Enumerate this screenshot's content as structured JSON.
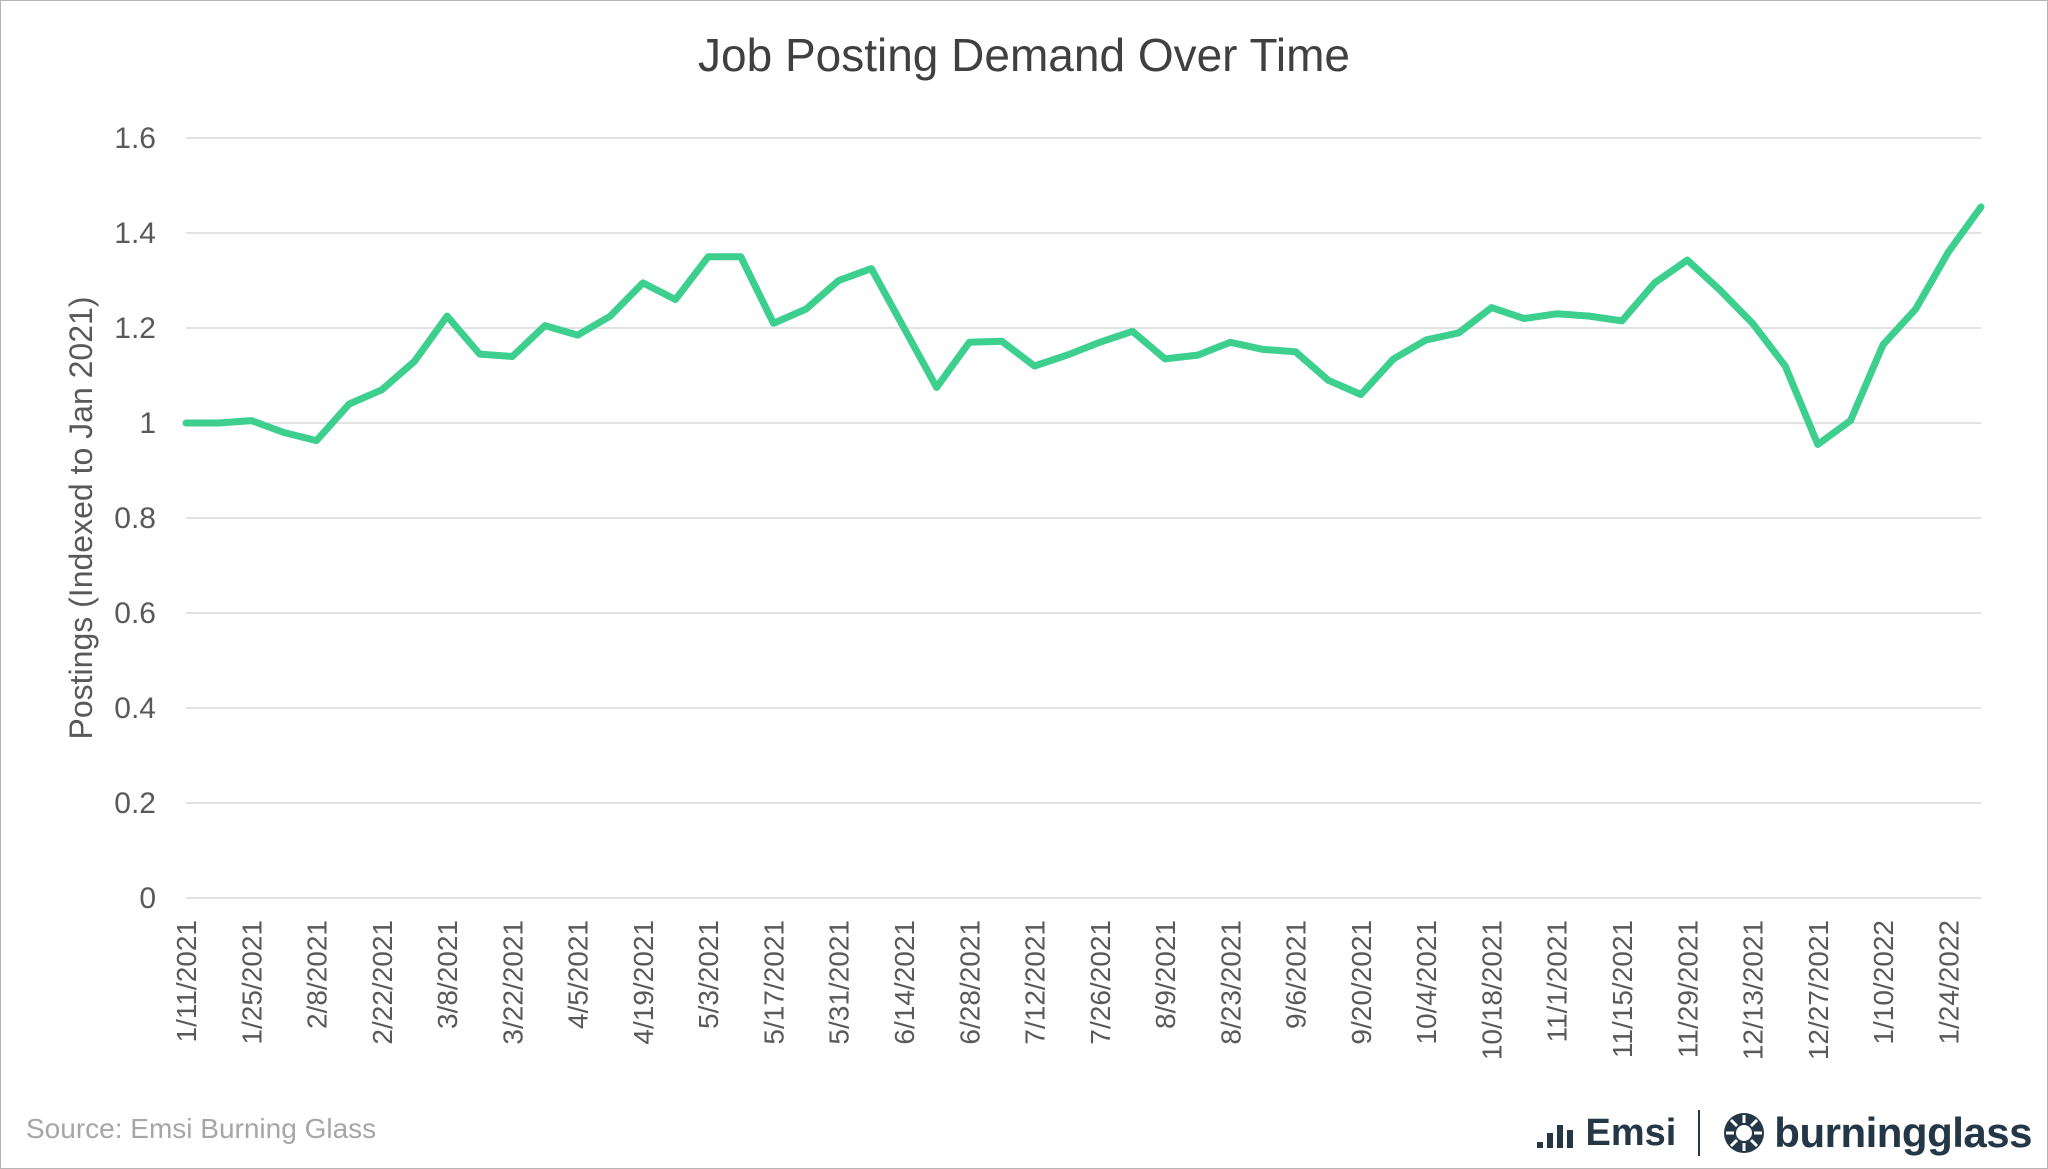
{
  "chart_data": {
    "type": "line",
    "title": "Job Posting Demand Over Time",
    "ylabel": "Postings (Indexed to Jan 2021)",
    "xlabel": "",
    "ylim": [
      0,
      1.6
    ],
    "yticks": [
      0,
      0.2,
      0.4,
      0.6,
      0.8,
      1,
      1.2,
      1.4,
      1.6
    ],
    "ytick_labels": [
      "0",
      "0.2",
      "0.4",
      "0.6",
      "0.8",
      "1",
      "1.2",
      "1.4",
      "1.6"
    ],
    "grid": true,
    "color": "#3ccf8e",
    "xtick_labels": [
      "1/11/2021",
      "1/25/2021",
      "2/8/2021",
      "2/22/2021",
      "3/8/2021",
      "3/22/2021",
      "4/5/2021",
      "4/19/2021",
      "5/3/2021",
      "5/17/2021",
      "5/31/2021",
      "6/14/2021",
      "6/28/2021",
      "7/12/2021",
      "7/26/2021",
      "8/9/2021",
      "8/23/2021",
      "9/6/2021",
      "9/20/2021",
      "10/4/2021",
      "10/18/2021",
      "11/1/2021",
      "11/15/2021",
      "11/29/2021",
      "12/13/2021",
      "12/27/2021",
      "1/10/2022",
      "1/24/2022"
    ],
    "x": [
      "1/11/2021",
      "1/18/2021",
      "1/25/2021",
      "2/1/2021",
      "2/8/2021",
      "2/15/2021",
      "2/22/2021",
      "3/1/2021",
      "3/8/2021",
      "3/15/2021",
      "3/22/2021",
      "3/29/2021",
      "4/5/2021",
      "4/12/2021",
      "4/19/2021",
      "4/26/2021",
      "5/3/2021",
      "5/10/2021",
      "5/17/2021",
      "5/24/2021",
      "5/31/2021",
      "6/7/2021",
      "6/14/2021",
      "6/21/2021",
      "6/28/2021",
      "7/5/2021",
      "7/12/2021",
      "7/19/2021",
      "7/26/2021",
      "8/2/2021",
      "8/9/2021",
      "8/16/2021",
      "8/23/2021",
      "8/30/2021",
      "9/6/2021",
      "9/13/2021",
      "9/20/2021",
      "9/27/2021",
      "10/4/2021",
      "10/11/2021",
      "10/18/2021",
      "10/25/2021",
      "11/1/2021",
      "11/8/2021",
      "11/15/2021",
      "11/22/2021",
      "11/29/2021",
      "12/6/2021",
      "12/13/2021",
      "12/20/2021",
      "12/27/2021",
      "1/3/2022",
      "1/10/2022",
      "1/17/2022",
      "1/24/2022",
      "1/31/2022"
    ],
    "series": [
      {
        "values": [
          1.0,
          1.0,
          1.005,
          0.98,
          0.963,
          1.04,
          1.07,
          1.13,
          1.225,
          1.145,
          1.14,
          1.205,
          1.185,
          1.225,
          1.295,
          1.26,
          1.35,
          1.35,
          1.21,
          1.24,
          1.3,
          1.325,
          1.2,
          1.075,
          1.17,
          1.172,
          1.12,
          1.143,
          1.17,
          1.193,
          1.135,
          1.143,
          1.17,
          1.155,
          1.15,
          1.09,
          1.06,
          1.135,
          1.175,
          1.19,
          1.243,
          1.22,
          1.23,
          1.225,
          1.215,
          1.295,
          1.343,
          1.28,
          1.21,
          1.12,
          0.955,
          1.005,
          1.165,
          1.24,
          1.36,
          1.455
        ]
      }
    ]
  },
  "footer": {
    "source": "Source:  Emsi Burning Glass",
    "logo_emsi": "Emsi",
    "logo_bg": "burningglass"
  }
}
